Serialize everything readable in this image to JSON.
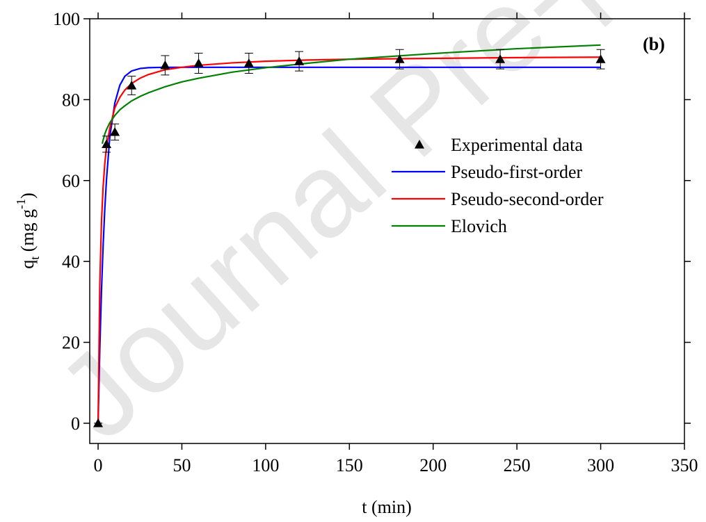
{
  "chart_data": {
    "type": "scatter-fit",
    "watermark": "Journal Pre-proof",
    "annotation": "(b)",
    "xlabel": "t (min)",
    "ylabel": {
      "main": "q",
      "sub": "t",
      "rest": " (mg g",
      "sup": "-1",
      "end": ")"
    },
    "xlim": [
      -5,
      350
    ],
    "ylim": [
      -5,
      100
    ],
    "xticks": [
      0,
      50,
      100,
      150,
      200,
      250,
      300,
      350
    ],
    "yticks": [
      0,
      20,
      40,
      60,
      80,
      100
    ],
    "series": [
      {
        "name": "Experimental data",
        "kind": "points",
        "color": "#000000",
        "x": [
          0,
          5,
          10,
          20,
          40,
          60,
          90,
          120,
          180,
          240,
          300
        ],
        "values": [
          0,
          69,
          72,
          83.5,
          88.5,
          89,
          89,
          89.5,
          90,
          90,
          90
        ],
        "errors": [
          0,
          2,
          2,
          2.3,
          2.4,
          2.5,
          2.5,
          2.4,
          2.4,
          2.4,
          2.4
        ]
      },
      {
        "name": "Pseudo-first-order",
        "kind": "line",
        "color": "#0000ff",
        "x": [
          0,
          1,
          2,
          3,
          4,
          5,
          7,
          10,
          13,
          16,
          20,
          25,
          30,
          40,
          60,
          100,
          150,
          200,
          250,
          300
        ],
        "values": [
          0,
          18.1,
          32.5,
          43.9,
          53.0,
          60.2,
          70.9,
          79.2,
          83.6,
          85.8,
          87.1,
          87.7,
          87.9,
          88.0,
          88.0,
          88.0,
          88.0,
          88.0,
          88.0,
          88.0
        ]
      },
      {
        "name": "Pseudo-second-order",
        "kind": "line",
        "color": "#ff0000",
        "x": [
          0,
          1,
          2,
          3,
          4,
          5,
          7,
          10,
          13,
          16,
          20,
          25,
          30,
          40,
          50,
          60,
          80,
          100,
          125,
          150,
          200,
          250,
          300
        ],
        "values": [
          0,
          34.1,
          49.6,
          58.5,
          64.2,
          68.3,
          73.0,
          78.0,
          80.6,
          82.4,
          84.0,
          85.3,
          86.2,
          87.4,
          88.0,
          88.5,
          89.1,
          89.5,
          89.8,
          90.0,
          90.2,
          90.4,
          90.5
        ]
      },
      {
        "name": "Elovich",
        "kind": "line",
        "color": "#008000",
        "x": [
          2.5,
          3,
          4,
          5,
          7,
          10,
          13,
          16,
          20,
          25,
          30,
          40,
          50,
          60,
          80,
          100,
          125,
          150,
          200,
          250,
          300
        ],
        "values": [
          69.1,
          70.0,
          71.5,
          72.6,
          74.3,
          76.1,
          77.5,
          78.5,
          79.7,
          80.8,
          81.7,
          83.2,
          84.4,
          85.3,
          86.8,
          87.9,
          89.0,
          90.0,
          91.4,
          92.6,
          93.5
        ]
      }
    ]
  }
}
